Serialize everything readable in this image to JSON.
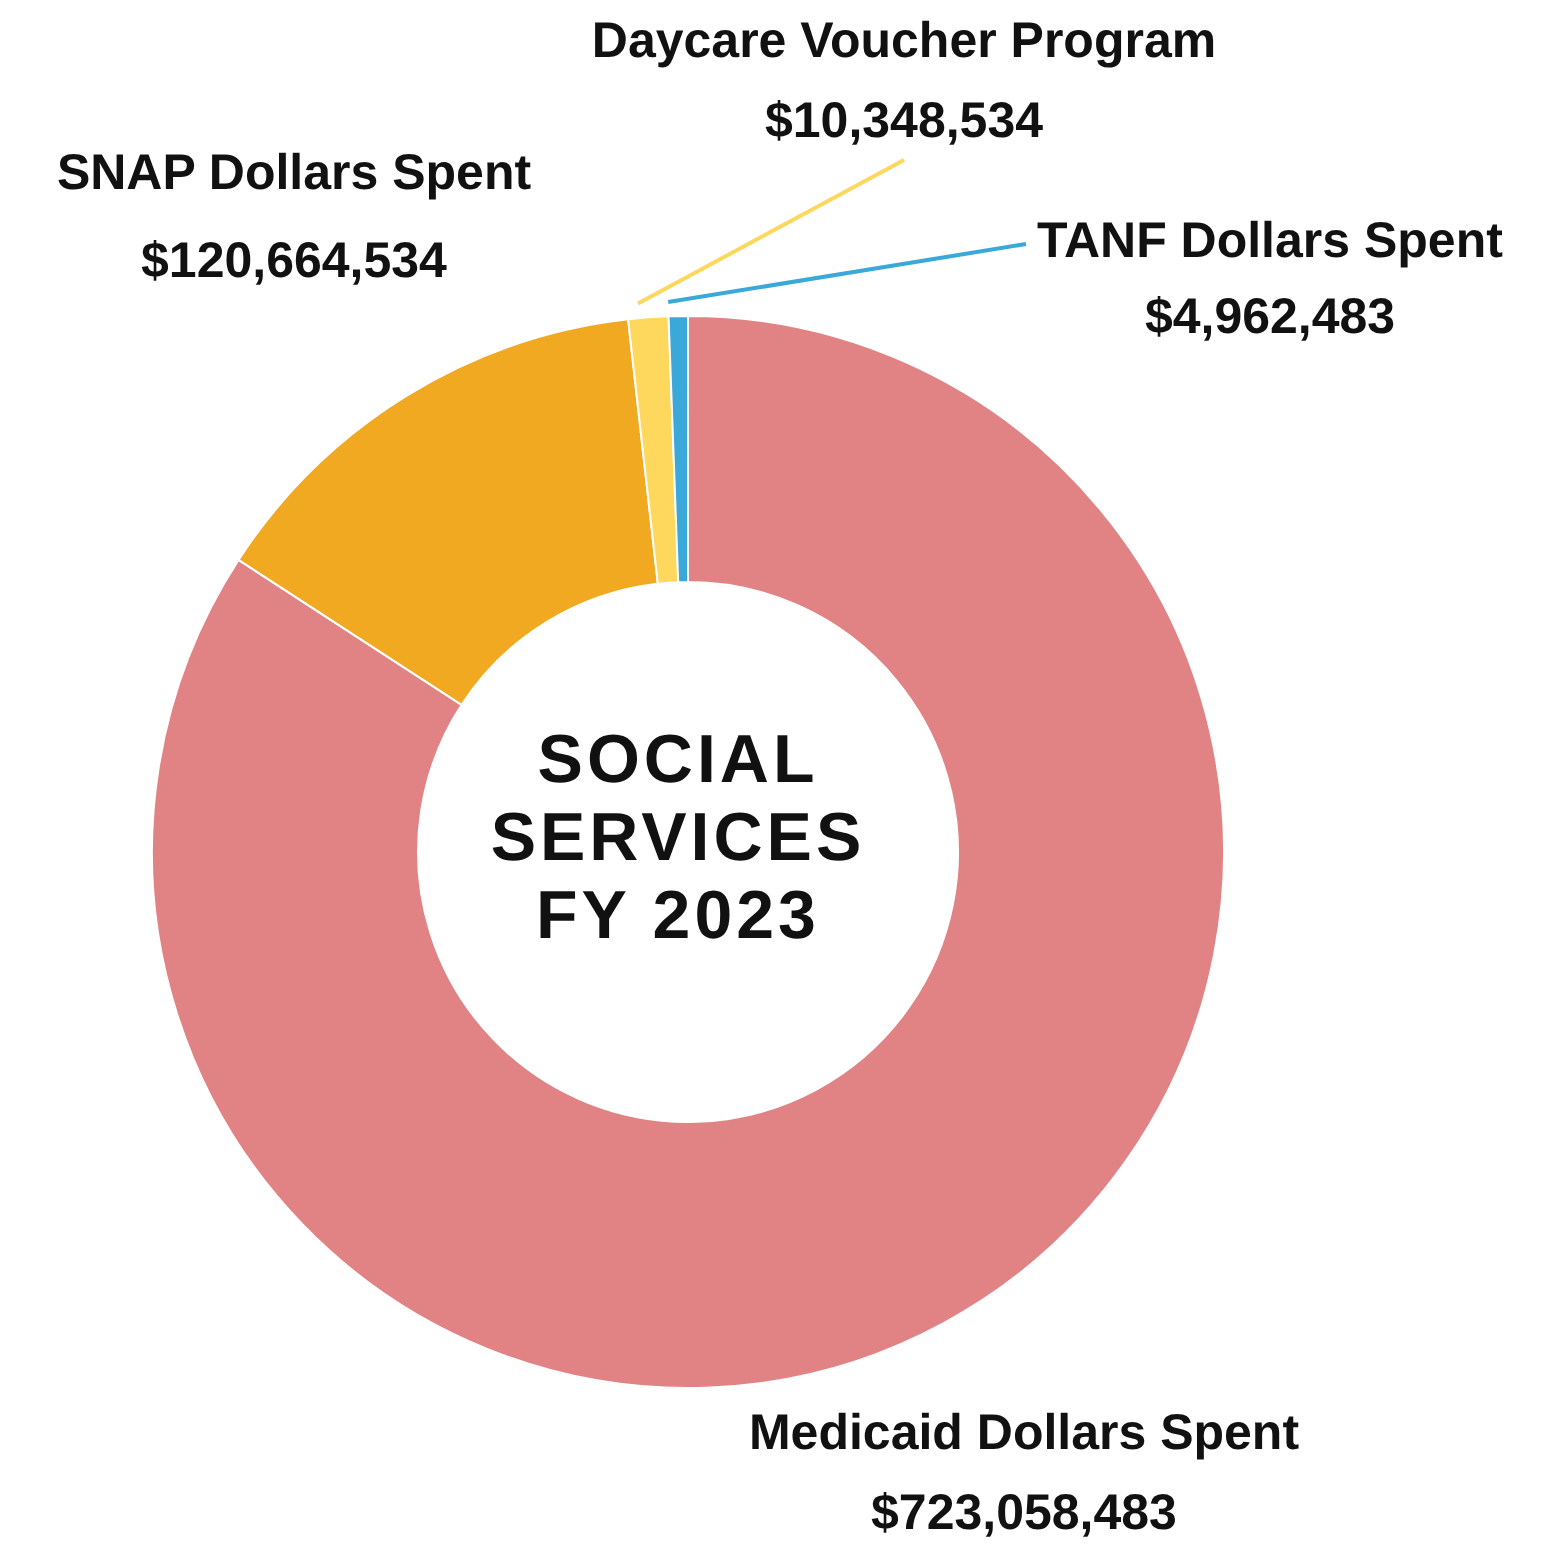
{
  "chart_data": {
    "type": "donut",
    "title": "SOCIAL\nSERVICES\nFY 2023",
    "categories": [
      "Medicaid Dollars Spent",
      "SNAP Dollars Spent",
      "Daycare Voucher Program",
      "TANF Dollars Spent"
    ],
    "values": [
      723058483,
      120664534,
      10348534,
      4962483
    ],
    "value_labels": [
      "$723,058,483",
      "$120,664,534",
      "$10,348,534",
      "$4,962,483"
    ],
    "colors": [
      "#e18385",
      "#f0a920",
      "#fdd85d",
      "#3aa8d8"
    ]
  }
}
